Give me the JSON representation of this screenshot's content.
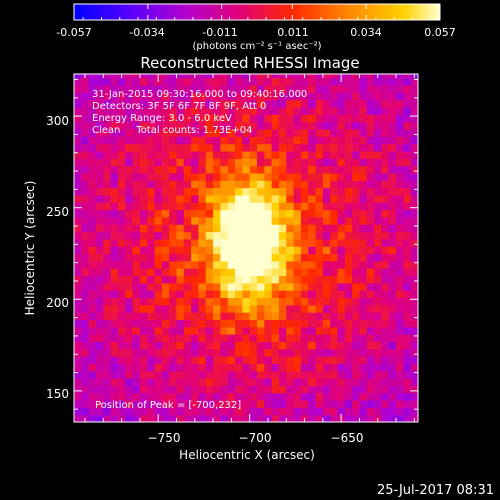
{
  "colorbar": {
    "ticks": [
      "-0.057",
      "-0.034",
      "-0.011",
      "0.011",
      "0.034",
      "0.057"
    ],
    "unit_label": "(photons cm⁻² s⁻¹ asec⁻²)"
  },
  "plot": {
    "title": "Reconstructed RHESSI Image",
    "info_lines": [
      "31-Jan-2015 09:30:16.000 to 09:40:16.000",
      "Detectors: 3F 5F 6F 7F 8F 9F, Att 0",
      "Energy Range: 3.0 - 6.0 keV",
      "Clean     Total counts: 1.73E+04"
    ],
    "peak_label": "Position of Peak = [-700,232]",
    "xlabel": "Heliocentric X (arcsec)",
    "ylabel": "Heliocentric Y (arcsec)",
    "x_ticks": [
      "−750",
      "−700",
      "−650"
    ],
    "y_ticks": [
      "300",
      "250",
      "200",
      "150"
    ]
  },
  "footer": {
    "timestamp": "25-Jul-2017 08:31"
  },
  "chart_data": {
    "type": "heatmap",
    "title": "Reconstructed RHESSI Image",
    "xlabel": "Heliocentric X (arcsec)",
    "ylabel": "Heliocentric Y (arcsec)",
    "xlim": [
      -796,
      -608
    ],
    "ylim": [
      133,
      323
    ],
    "x_ticks": [
      -750,
      -700,
      -650
    ],
    "y_ticks": [
      150,
      200,
      250,
      300
    ],
    "colorbar_range": [
      -0.057,
      0.057
    ],
    "colorbar_ticks": [
      -0.057,
      -0.034,
      -0.011,
      0.011,
      0.034,
      0.057
    ],
    "colorbar_unit": "(photons cm⁻² s⁻¹ asec⁻²)",
    "colormap": [
      "#0000ff",
      "#5500ff",
      "#b000d0",
      "#e0007a",
      "#ff2a00",
      "#ff8800",
      "#ffd000",
      "#ffffd0"
    ],
    "peak_position": [
      -700,
      232
    ],
    "peak_value": 0.057
  }
}
